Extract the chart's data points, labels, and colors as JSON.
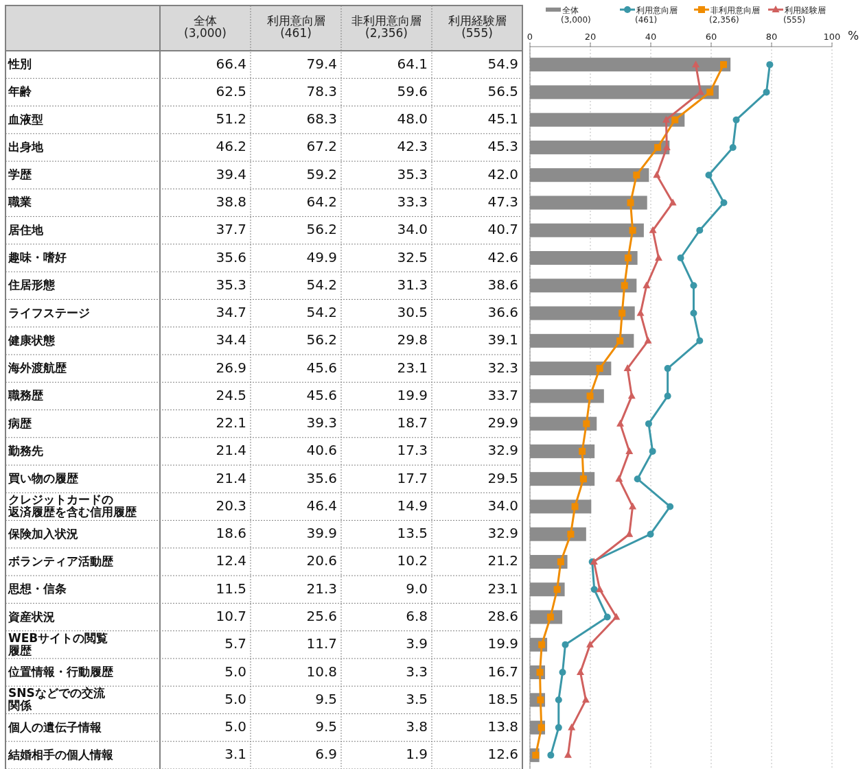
{
  "chart_data": {
    "type": "bar",
    "orientation": "horizontal",
    "x2label": "%",
    "xlim": [
      0,
      100
    ],
    "x2lim": [
      0,
      100
    ],
    "x2ticks": [
      0,
      20,
      40,
      60,
      80,
      100
    ],
    "grid": "x",
    "legend": "top",
    "categories": [
      "性別",
      "年齢",
      "血液型",
      "出身地",
      "学歴",
      "職業",
      "居住地",
      "趣味・嗜好",
      "住居形態",
      "ライフステージ",
      "健康状態",
      "海外渡航歴",
      "職務歴",
      "病歴",
      "勤務先",
      "買い物の履歴",
      "クレジットカードの返済履歴を含む信用履歴",
      "保険加入状況",
      "ボランティア活動歴",
      "思想・信条",
      "資産状況",
      "WEBサイトの閲覧履歴",
      "位置情報・行動履歴",
      "SNSなどでの交流関係",
      "個人の遺伝子情報",
      "結婚相手の個人情報"
    ],
    "series": [
      {
        "name": "全体\n(3,000)",
        "color": "#8c8c8c",
        "values": [
          66.4,
          62.5,
          51.2,
          46.2,
          39.4,
          38.8,
          37.7,
          35.6,
          35.3,
          34.7,
          34.4,
          26.9,
          24.5,
          22.1,
          21.4,
          21.4,
          20.3,
          18.6,
          12.4,
          11.5,
          10.7,
          5.7,
          5.0,
          5.0,
          5.0,
          3.1
        ],
        "value_labels": [
          "66.4",
          "62.5",
          "51.2",
          "46.2",
          "39.4",
          "38.8",
          "37.7",
          "35.6",
          "35.3",
          "34.7",
          "34.4",
          "26.9",
          "24.5",
          "22.1",
          "21.4",
          "21.4",
          "20.3",
          "18.6",
          "12.4",
          "11.5",
          "10.7",
          "5.7",
          "5.0",
          "5.0",
          "5.0",
          "3.1"
        ]
      },
      {
        "name": "利用意向層\n(461)",
        "type": "line",
        "marker": "circle",
        "color": "#3a97a8",
        "values": [
          79.4,
          78.3,
          68.3,
          67.2,
          59.2,
          64.2,
          56.2,
          49.9,
          54.2,
          54.2,
          56.2,
          45.6,
          45.6,
          39.3,
          40.6,
          35.6,
          46.4,
          39.9,
          20.6,
          21.3,
          25.6,
          11.7,
          10.8,
          9.5,
          9.5,
          6.9
        ],
        "value_labels": [
          "79.4",
          "78.3",
          "68.3",
          "67.2",
          "59.2",
          "64.2",
          "56.2",
          "49.9",
          "54.2",
          "54.2",
          "56.2",
          "45.6",
          "45.6",
          "39.3",
          "40.6",
          "35.6",
          "46.4",
          "39.9",
          "20.6",
          "21.3",
          "25.6",
          "11.7",
          "10.8",
          "9.5",
          "9.5",
          "6.9"
        ]
      },
      {
        "name": "非利用意向層\n(2,356)",
        "type": "line",
        "marker": "square",
        "color": "#f08c00",
        "values": [
          64.1,
          59.6,
          48.0,
          42.3,
          35.3,
          33.3,
          34.0,
          32.5,
          31.3,
          30.5,
          29.8,
          23.1,
          19.9,
          18.7,
          17.3,
          17.7,
          14.9,
          13.5,
          10.2,
          9.0,
          6.8,
          3.9,
          3.3,
          3.5,
          3.8,
          1.9
        ],
        "value_labels": [
          "64.1",
          "59.6",
          "48.0",
          "42.3",
          "35.3",
          "33.3",
          "34.0",
          "32.5",
          "31.3",
          "30.5",
          "29.8",
          "23.1",
          "19.9",
          "18.7",
          "17.3",
          "17.7",
          "14.9",
          "13.5",
          "10.2",
          "9.0",
          "6.8",
          "3.9",
          "3.3",
          "3.5",
          "3.8",
          "1.9"
        ]
      },
      {
        "name": "利用経験層\n(555)",
        "type": "line",
        "marker": "triangle",
        "color": "#d0605e",
        "values": [
          54.9,
          56.5,
          45.1,
          45.3,
          42.0,
          47.3,
          40.7,
          42.6,
          38.6,
          36.6,
          39.1,
          32.3,
          33.7,
          29.9,
          32.9,
          29.5,
          34.0,
          32.9,
          21.2,
          23.1,
          28.6,
          19.9,
          16.7,
          18.5,
          13.8,
          12.6
        ],
        "value_labels": [
          "54.9",
          "56.5",
          "45.1",
          "45.3",
          "42.0",
          "47.3",
          "40.7",
          "42.6",
          "38.6",
          "36.6",
          "39.1",
          "32.3",
          "33.7",
          "29.9",
          "32.9",
          "29.5",
          "34.0",
          "32.9",
          "21.2",
          "23.1",
          "28.6",
          "19.9",
          "16.7",
          "18.5",
          "13.8",
          "12.6"
        ]
      }
    ]
  }
}
